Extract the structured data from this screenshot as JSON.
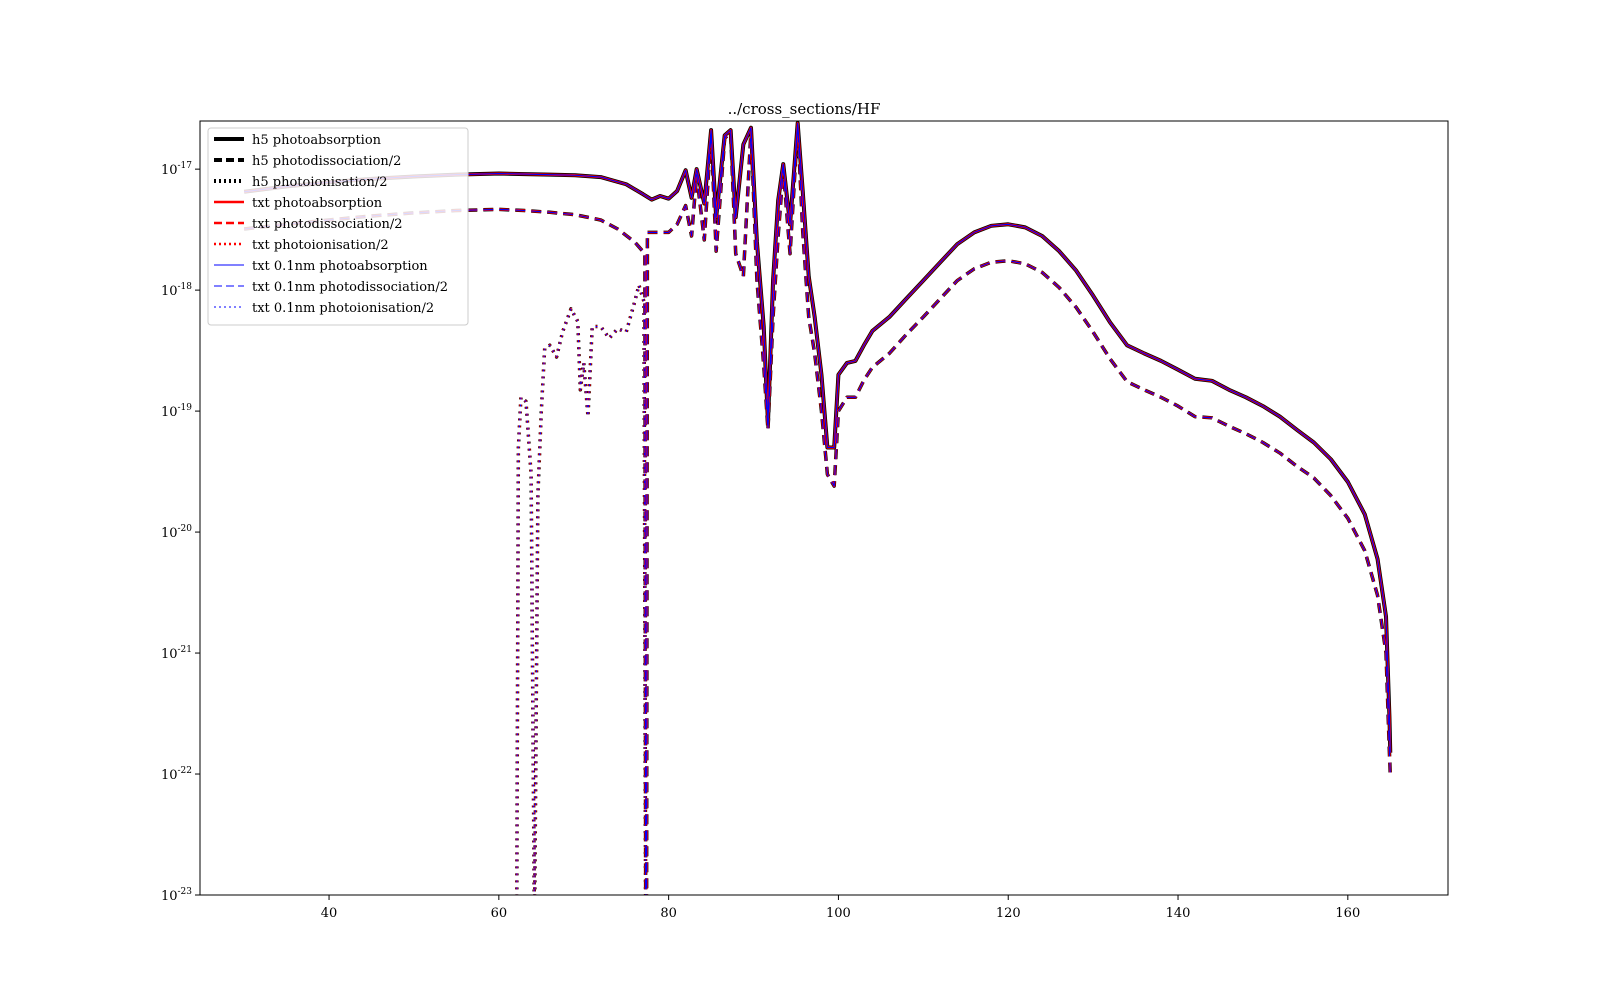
{
  "chart_data": {
    "type": "line",
    "title": "../cross_sections/HF",
    "xlabel": "",
    "ylabel": "",
    "x_scale": "linear",
    "y_scale": "log",
    "xlim": [
      24.8,
      171.8
    ],
    "ylim": [
      1e-23,
      2.5e-17
    ],
    "x_ticks": [
      40,
      60,
      80,
      100,
      120,
      140,
      160
    ],
    "y_ticks": [
      {
        "value": 1e-17,
        "mantissa": "10",
        "exponent": "-17"
      },
      {
        "value": 1e-18,
        "mantissa": "10",
        "exponent": "-18"
      },
      {
        "value": 1e-19,
        "mantissa": "10",
        "exponent": "-19"
      },
      {
        "value": 1e-20,
        "mantissa": "10",
        "exponent": "-20"
      },
      {
        "value": 1e-21,
        "mantissa": "10",
        "exponent": "-21"
      },
      {
        "value": 1e-22,
        "mantissa": "10",
        "exponent": "-22"
      },
      {
        "value": 1e-23,
        "mantissa": "10",
        "exponent": "-23"
      }
    ],
    "grid": false,
    "legend_position": "top-left",
    "colors": {
      "h5": "#000000",
      "txt": "#ff0000",
      "txt_01nm": "#0000ff"
    },
    "legend": [
      {
        "label": "h5 photoabsorption",
        "color": "#000000",
        "style": "solid"
      },
      {
        "label": "h5 photodissociation/2",
        "color": "#000000",
        "style": "dashed"
      },
      {
        "label": "h5 photoionisation/2",
        "color": "#000000",
        "style": "dotted"
      },
      {
        "label": "txt photoabsorption",
        "color": "#ff0000",
        "style": "solid"
      },
      {
        "label": "txt photodissociation/2",
        "color": "#ff0000",
        "style": "dashed"
      },
      {
        "label": "txt photoionisation/2",
        "color": "#ff0000",
        "style": "dotted"
      },
      {
        "label": "txt 0.1nm photoabsorption",
        "color": "#0000ff",
        "style": "solid"
      },
      {
        "label": "txt 0.1nm photodissociation/2",
        "color": "#0000ff",
        "style": "dashed"
      },
      {
        "label": "txt 0.1nm photoionisation/2",
        "color": "#0000ff",
        "style": "dotted"
      }
    ],
    "series": [
      {
        "name": "photoabsorption",
        "points": [
          [
            30,
            6.5e-18
          ],
          [
            35,
            7.2e-18
          ],
          [
            40,
            7.8e-18
          ],
          [
            45,
            8.3e-18
          ],
          [
            50,
            8.7e-18
          ],
          [
            55,
            9e-18
          ],
          [
            60,
            9.2e-18
          ],
          [
            63,
            9.1e-18
          ],
          [
            66,
            9e-18
          ],
          [
            69,
            8.9e-18
          ],
          [
            72,
            8.6e-18
          ],
          [
            75,
            7.5e-18
          ],
          [
            77,
            6.2e-18
          ],
          [
            78,
            5.6e-18
          ],
          [
            79,
            6e-18
          ],
          [
            80,
            5.7e-18
          ],
          [
            81,
            6.6e-18
          ],
          [
            82,
            9.8e-18
          ],
          [
            82.7,
            5.8e-18
          ],
          [
            83.3,
            1e-17
          ],
          [
            84.2,
            5.2e-18
          ],
          [
            85,
            2.1e-17
          ],
          [
            85.6,
            4e-18
          ],
          [
            86.6,
            1.9e-17
          ],
          [
            87.3,
            2.1e-17
          ],
          [
            87.9,
            4e-18
          ],
          [
            88.8,
            1.6e-17
          ],
          [
            89.7,
            2.2e-17
          ],
          [
            90.4,
            2.5e-18
          ],
          [
            91.2,
            5e-19
          ],
          [
            91.7,
            8e-20
          ],
          [
            92.3,
            1.2e-18
          ],
          [
            92.9,
            5.5e-18
          ],
          [
            93.5,
            1.1e-17
          ],
          [
            94.3,
            3.5e-18
          ],
          [
            95.2,
            2.4e-17
          ],
          [
            95.8,
            6.5e-18
          ],
          [
            96.5,
            1.3e-18
          ],
          [
            97.2,
            6e-19
          ],
          [
            98,
            2e-19
          ],
          [
            98.7,
            5e-20
          ],
          [
            99.5,
            5e-20
          ],
          [
            100,
            2e-19
          ],
          [
            101,
            2.5e-19
          ],
          [
            102,
            2.6e-19
          ],
          [
            103,
            3.5e-19
          ],
          [
            104,
            4.6e-19
          ],
          [
            106,
            6e-19
          ],
          [
            108,
            8.5e-19
          ],
          [
            110,
            1.2e-18
          ],
          [
            112,
            1.7e-18
          ],
          [
            114,
            2.4e-18
          ],
          [
            116,
            3e-18
          ],
          [
            118,
            3.4e-18
          ],
          [
            120,
            3.5e-18
          ],
          [
            122,
            3.3e-18
          ],
          [
            124,
            2.8e-18
          ],
          [
            126,
            2.1e-18
          ],
          [
            128,
            1.45e-18
          ],
          [
            130,
            9e-19
          ],
          [
            132,
            5.4e-19
          ],
          [
            134,
            3.5e-19
          ],
          [
            136,
            3e-19
          ],
          [
            138,
            2.6e-19
          ],
          [
            140,
            2.2e-19
          ],
          [
            142,
            1.85e-19
          ],
          [
            144,
            1.78e-19
          ],
          [
            146,
            1.5e-19
          ],
          [
            148,
            1.3e-19
          ],
          [
            150,
            1.1e-19
          ],
          [
            152,
            9e-20
          ],
          [
            154,
            7e-20
          ],
          [
            156,
            5.5e-20
          ],
          [
            158,
            4e-20
          ],
          [
            160,
            2.6e-20
          ],
          [
            162,
            1.4e-20
          ],
          [
            163.5,
            6e-21
          ],
          [
            164.5,
            2e-21
          ],
          [
            164.9,
            3e-22
          ],
          [
            165,
            1.5e-22
          ]
        ]
      },
      {
        "name": "photodissociation/2",
        "points": [
          [
            30,
            3.2e-18
          ],
          [
            35,
            3.5e-18
          ],
          [
            40,
            3.8e-18
          ],
          [
            45,
            4.1e-18
          ],
          [
            50,
            4.35e-18
          ],
          [
            55,
            4.55e-18
          ],
          [
            60,
            4.65e-18
          ],
          [
            63,
            4.55e-18
          ],
          [
            66,
            4.4e-18
          ],
          [
            69,
            4.2e-18
          ],
          [
            72,
            3.8e-18
          ],
          [
            74,
            3.2e-18
          ],
          [
            76,
            2.5e-18
          ],
          [
            77.2,
            2e-18
          ],
          [
            77.3,
            5e-24
          ],
          [
            77.4,
            5e-24
          ],
          [
            77.5,
            3e-18
          ],
          [
            79,
            3e-18
          ],
          [
            80,
            3e-18
          ],
          [
            81,
            3.5e-18
          ],
          [
            82,
            5e-18
          ],
          [
            82.7,
            2.8e-18
          ],
          [
            83.3,
            9e-18
          ],
          [
            84.2,
            2.6e-18
          ],
          [
            85,
            2e-17
          ],
          [
            85.6,
            2.1e-18
          ],
          [
            86.6,
            1.8e-17
          ],
          [
            87.3,
            2e-17
          ],
          [
            87.9,
            2e-18
          ],
          [
            88.8,
            1.3e-18
          ],
          [
            89.7,
            2.1e-17
          ],
          [
            90.4,
            1.2e-18
          ],
          [
            91.2,
            2.4e-19
          ],
          [
            91.7,
            7e-20
          ],
          [
            92.3,
            6e-19
          ],
          [
            92.9,
            2.8e-18
          ],
          [
            93.5,
            1e-17
          ],
          [
            94.3,
            2e-18
          ],
          [
            95.2,
            2.3e-17
          ],
          [
            95.8,
            3e-18
          ],
          [
            96.5,
            6e-19
          ],
          [
            97.2,
            3e-19
          ],
          [
            98,
            1e-19
          ],
          [
            98.7,
            3e-20
          ],
          [
            99.5,
            2.4e-20
          ],
          [
            100,
            1e-19
          ],
          [
            101,
            1.3e-19
          ],
          [
            102,
            1.3e-19
          ],
          [
            103,
            1.8e-19
          ],
          [
            104,
            2.3e-19
          ],
          [
            106,
            3e-19
          ],
          [
            108,
            4.3e-19
          ],
          [
            110,
            6e-19
          ],
          [
            112,
            8.5e-19
          ],
          [
            114,
            1.2e-18
          ],
          [
            116,
            1.5e-18
          ],
          [
            118,
            1.7e-18
          ],
          [
            120,
            1.75e-18
          ],
          [
            122,
            1.65e-18
          ],
          [
            124,
            1.4e-18
          ],
          [
            126,
            1.05e-18
          ],
          [
            128,
            7.2e-19
          ],
          [
            130,
            4.5e-19
          ],
          [
            132,
            2.7e-19
          ],
          [
            134,
            1.75e-19
          ],
          [
            136,
            1.5e-19
          ],
          [
            138,
            1.3e-19
          ],
          [
            140,
            1.1e-19
          ],
          [
            142,
            9e-20
          ],
          [
            144,
            8.8e-20
          ],
          [
            146,
            7.5e-20
          ],
          [
            148,
            6.5e-20
          ],
          [
            150,
            5.5e-20
          ],
          [
            152,
            4.5e-20
          ],
          [
            154,
            3.5e-20
          ],
          [
            156,
            2.8e-20
          ],
          [
            158,
            2e-20
          ],
          [
            160,
            1.3e-20
          ],
          [
            162,
            7e-21
          ],
          [
            163.5,
            3e-21
          ],
          [
            164.5,
            1e-21
          ],
          [
            164.9,
            1.5e-22
          ],
          [
            165,
            1e-22
          ]
        ]
      },
      {
        "name": "photoionisation/2",
        "points": [
          [
            62.1,
            5e-24
          ],
          [
            62.3,
            5e-20
          ],
          [
            62.6,
            1.3e-19
          ],
          [
            63.2,
            1.2e-19
          ],
          [
            63.8,
            3e-20
          ],
          [
            64.2,
            5e-24
          ],
          [
            64.6,
            2e-20
          ],
          [
            65,
            1e-19
          ],
          [
            65.4,
            3.3e-19
          ],
          [
            66,
            3.5e-19
          ],
          [
            66.8,
            2.8e-19
          ],
          [
            67.5,
            4.5e-19
          ],
          [
            68.5,
            7e-19
          ],
          [
            69.3,
            5.5e-19
          ],
          [
            69.6,
            1.5e-19
          ],
          [
            70,
            2.5e-19
          ],
          [
            70.5,
            9e-20
          ],
          [
            71,
            5e-19
          ],
          [
            72,
            5e-19
          ],
          [
            73,
            4e-19
          ],
          [
            74,
            4.8e-19
          ],
          [
            75,
            4.5e-19
          ],
          [
            76,
            8e-19
          ],
          [
            76.5,
            1.1e-18
          ],
          [
            77.1,
            8e-19
          ],
          [
            77.3,
            5e-24
          ]
        ]
      }
    ]
  }
}
